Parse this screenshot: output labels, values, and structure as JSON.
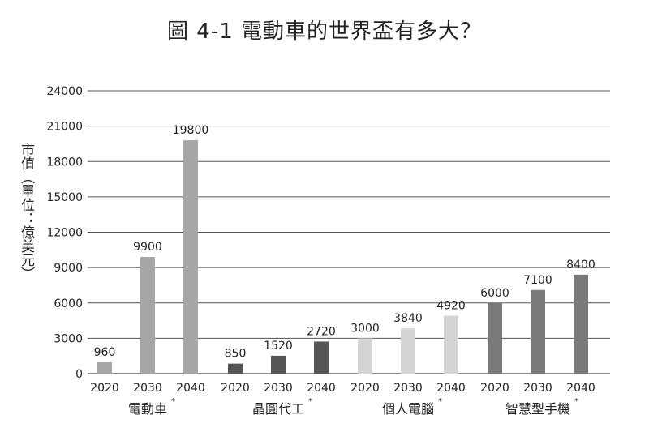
{
  "chart_data": {
    "type": "bar",
    "title": "圖 4-1 電動車的世界盃有多大？",
    "ylabel": "市值（單位：億美元）",
    "xlabel": "",
    "ylim": [
      0,
      24000
    ],
    "yticks": [
      0,
      3000,
      6000,
      9000,
      12000,
      15000,
      18000,
      21000,
      24000
    ],
    "grid": true,
    "groups": [
      {
        "name": "電動車",
        "marker": "*",
        "color": "#a6a6a6",
        "bars": [
          {
            "year": "2020",
            "value": 960
          },
          {
            "year": "2030",
            "value": 9900
          },
          {
            "year": "2040",
            "value": 19800
          }
        ]
      },
      {
        "name": "晶圓代工",
        "marker": "*",
        "color": "#555555",
        "bars": [
          {
            "year": "2020",
            "value": 850
          },
          {
            "year": "2030",
            "value": 1520
          },
          {
            "year": "2040",
            "value": 2720
          }
        ]
      },
      {
        "name": "個人電腦",
        "marker": "*",
        "color": "#d4d4d4",
        "bars": [
          {
            "year": "2020",
            "value": 3000
          },
          {
            "year": "2030",
            "value": 3840
          },
          {
            "year": "2040",
            "value": 4920
          }
        ]
      },
      {
        "name": "智慧型手機",
        "marker": "*",
        "color": "#7a7a7a",
        "bars": [
          {
            "year": "2020",
            "value": 6000
          },
          {
            "year": "2030",
            "value": 7100
          },
          {
            "year": "2040",
            "value": 8400
          }
        ]
      }
    ]
  }
}
